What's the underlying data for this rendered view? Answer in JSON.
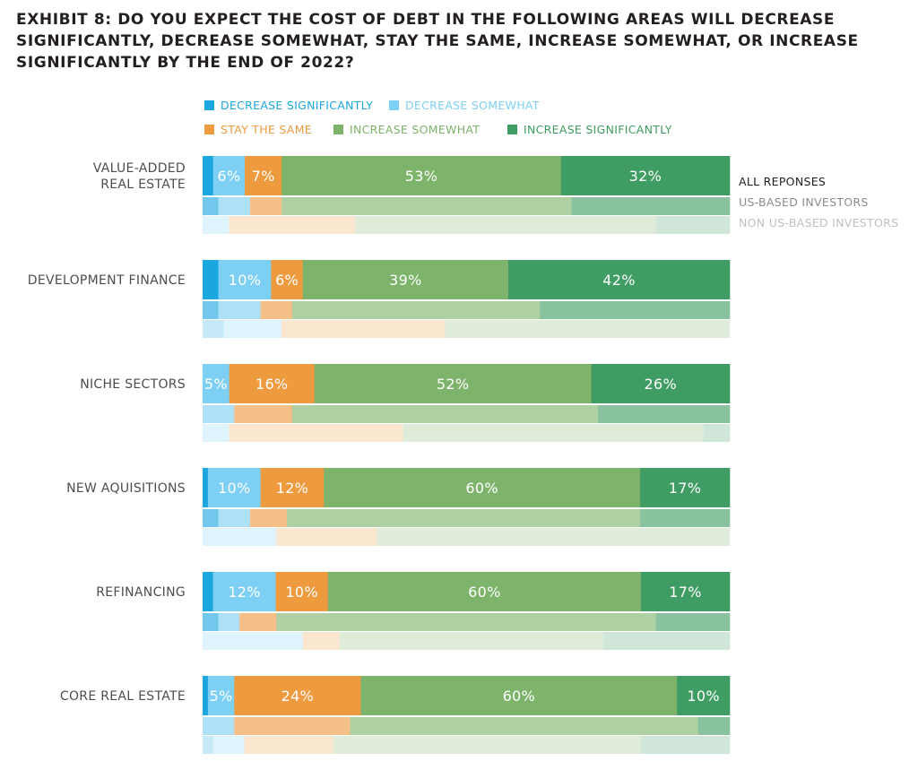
{
  "chart_data": {
    "type": "bar",
    "orientation": "horizontal",
    "stacked": true,
    "title": "EXHIBIT 8: DO YOU EXPECT THE COST OF DEBT IN THE FOLLOWING AREAS WILL DECREASE SIGNIFICANTLY, DECREASE SOMEWHAT, STAY THE SAME, INCREASE SOMEWHAT, OR INCREASE SIGNIFICANTLY BY THE END OF 2022?",
    "legend_position": "top",
    "legend": [
      {
        "name": "DECREASE SIGNIFICANTLY",
        "color": "#1ca6e0"
      },
      {
        "name": "DECREASE SOMEWHAT",
        "color": "#7dcff3"
      },
      {
        "name": "STAY THE SAME",
        "color": "#ee9a3f"
      },
      {
        "name": "INCREASE SOMEWHAT",
        "color": "#7db36b"
      },
      {
        "name": "INCREASE SIGNIFICANTLY",
        "color": "#3f9c62"
      }
    ],
    "group_legend": [
      {
        "name": "ALL REPONSES",
        "color": "#231f20"
      },
      {
        "name": "US-BASED INVESTORS",
        "color": "#8c8c8c"
      },
      {
        "name": "NON US-BASED INVESTORS",
        "color": "#c0c0c0"
      }
    ],
    "categories": [
      "VALUE-ADDED\nREAL ESTATE",
      "DEVELOPMENT FINANCE",
      "NICHE SECTORS",
      "NEW AQUISITIONS",
      "REFINANCING",
      "CORE REAL ESTATE"
    ],
    "groups": [
      {
        "all": [
          2,
          6,
          7,
          53,
          32
        ],
        "us": [
          3,
          6,
          6,
          55,
          30
        ],
        "non_us": [
          0,
          5,
          24,
          57,
          14
        ],
        "labels": [
          "",
          "6%",
          "7%",
          "53%",
          "32%"
        ]
      },
      {
        "all": [
          3,
          10,
          6,
          39,
          42
        ],
        "us": [
          3,
          8,
          6,
          47,
          36
        ],
        "non_us": [
          4,
          11,
          31,
          54,
          0
        ],
        "labels": [
          "",
          "10%",
          "6%",
          "39%",
          "42%"
        ]
      },
      {
        "all": [
          0,
          5,
          16,
          52,
          26
        ],
        "us": [
          0,
          6,
          11,
          58,
          25
        ],
        "non_us": [
          0,
          5,
          33,
          57,
          5
        ],
        "labels": [
          "",
          "5%",
          "16%",
          "52%",
          "26%"
        ]
      },
      {
        "all": [
          1,
          10,
          12,
          60,
          17
        ],
        "us": [
          3,
          6,
          7,
          67,
          17
        ],
        "non_us": [
          0,
          14,
          19,
          67,
          0
        ],
        "labels": [
          "",
          "10%",
          "12%",
          "60%",
          "17%"
        ]
      },
      {
        "all": [
          2,
          12,
          10,
          60,
          17
        ],
        "us": [
          3,
          4,
          7,
          72,
          14
        ],
        "non_us": [
          0,
          19,
          7,
          50,
          24
        ],
        "labels": [
          "",
          "12%",
          "10%",
          "60%",
          "17%"
        ]
      },
      {
        "all": [
          1,
          5,
          24,
          60,
          10
        ],
        "us": [
          0,
          6,
          22,
          66,
          6
        ],
        "non_us": [
          2,
          6,
          17,
          59,
          17
        ],
        "labels": [
          "",
          "5%",
          "24%",
          "60%",
          "10%"
        ]
      }
    ]
  }
}
